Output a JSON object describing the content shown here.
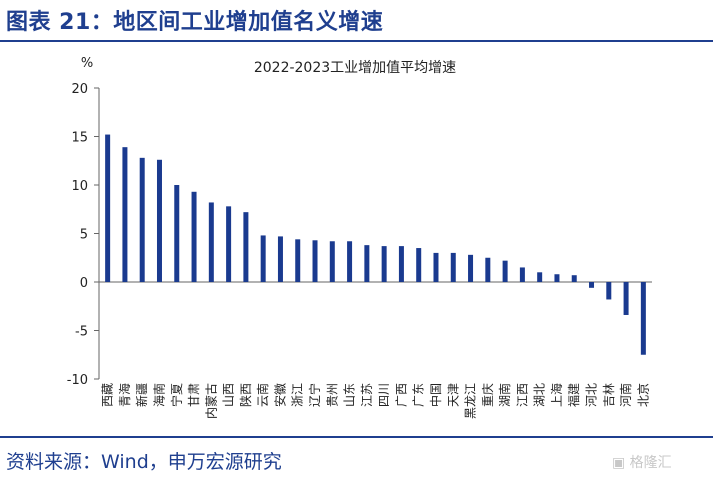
{
  "figure": {
    "title": "图表 21：地区间工业增加值名义增速",
    "source": "资料来源：Wind，申万宏源研究",
    "watermark": "格隆汇"
  },
  "colors": {
    "brand": "#1f3f8f",
    "bar": "#1a3a8f"
  },
  "chart_data": {
    "type": "bar",
    "title": "2022-2023工业增加值平均增速",
    "ylabel": "%",
    "xlabel": "",
    "ylim": [
      -10,
      20
    ],
    "yticks": [
      -10,
      -5,
      0,
      5,
      10,
      15,
      20
    ],
    "grid": false,
    "legend": "none",
    "categories": [
      "西藏",
      "青海",
      "新疆",
      "海南",
      "宁夏",
      "甘肃",
      "内蒙古",
      "山西",
      "陕西",
      "云南",
      "安徽",
      "浙江",
      "辽宁",
      "贵州",
      "山东",
      "江苏",
      "四川",
      "广西",
      "广东",
      "中国",
      "天津",
      "黑龙江",
      "重庆",
      "湖南",
      "江西",
      "湖北",
      "上海",
      "福建",
      "河北",
      "吉林",
      "河南",
      "北京"
    ],
    "values": [
      15.2,
      13.9,
      12.8,
      12.6,
      10.0,
      9.3,
      8.2,
      7.8,
      7.2,
      4.8,
      4.7,
      4.4,
      4.3,
      4.2,
      4.2,
      3.8,
      3.7,
      3.7,
      3.5,
      3.0,
      3.0,
      2.8,
      2.5,
      2.2,
      1.5,
      1.0,
      0.8,
      0.7,
      -0.6,
      -1.8,
      -3.4,
      -7.5
    ]
  }
}
